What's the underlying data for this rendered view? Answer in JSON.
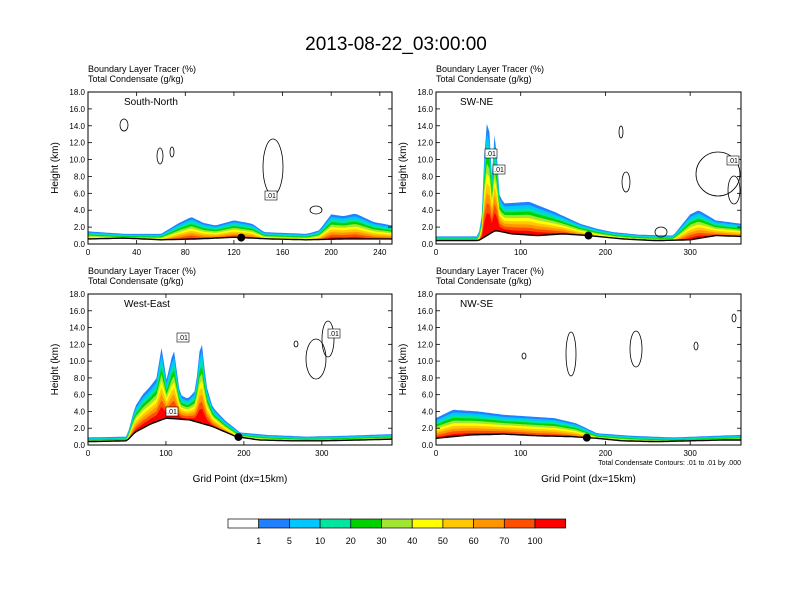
{
  "title": "2013-08-22_03:00:00",
  "chart_data": [
    {
      "type": "area",
      "label": "South-North",
      "header": [
        "Boundary Layer Tracer   (%)",
        "Total Condensate   (g/kg)"
      ],
      "ylabel": "Height (km)",
      "xlabel": "",
      "ylim": [
        0,
        18
      ],
      "yticks": [
        "0.0",
        "2.0",
        "4.0",
        "6.0",
        "8.0",
        "10.0",
        "12.0",
        "14.0",
        "16.0",
        "18.0"
      ],
      "xlim": [
        0,
        250
      ],
      "xticks": [
        0,
        40,
        80,
        120,
        160,
        200,
        240
      ],
      "contour_labels": [
        ".01"
      ],
      "marker_x": 126,
      "terrain": [
        [
          0,
          0.6
        ],
        [
          30,
          0.7
        ],
        [
          60,
          0.5
        ],
        [
          90,
          0.6
        ],
        [
          120,
          0.8
        ],
        [
          150,
          0.6
        ],
        [
          180,
          0.5
        ],
        [
          210,
          0.6
        ],
        [
          250,
          0.6
        ]
      ],
      "tracer_top": [
        [
          0,
          1.5
        ],
        [
          30,
          1.2
        ],
        [
          60,
          1.2
        ],
        [
          75,
          2.5
        ],
        [
          85,
          3.2
        ],
        [
          95,
          2.5
        ],
        [
          105,
          2.2
        ],
        [
          120,
          2.8
        ],
        [
          135,
          2.4
        ],
        [
          145,
          1.4
        ],
        [
          180,
          1.2
        ],
        [
          190,
          1.6
        ],
        [
          200,
          3.5
        ],
        [
          210,
          3.3
        ],
        [
          220,
          3.6
        ],
        [
          235,
          2.6
        ],
        [
          250,
          2.2
        ]
      ]
    },
    {
      "type": "area",
      "label": "SW-NE",
      "header": [
        "Boundary Layer Tracer   (%)",
        "Total Condensate   (g/kg)"
      ],
      "ylabel": "Height (km)",
      "xlabel": "",
      "ylim": [
        0,
        18
      ],
      "yticks": [
        "0.0",
        "2.0",
        "4.0",
        "6.0",
        "8.0",
        "10.0",
        "12.0",
        "14.0",
        "16.0",
        "18.0"
      ],
      "xlim": [
        0,
        360
      ],
      "xticks": [
        0,
        100,
        200,
        300
      ],
      "contour_labels": [
        ".01",
        ".01",
        ".01"
      ],
      "marker_x": 180,
      "terrain": [
        [
          0,
          0.4
        ],
        [
          50,
          0.4
        ],
        [
          60,
          1.0
        ],
        [
          70,
          1.6
        ],
        [
          90,
          1.2
        ],
        [
          120,
          1.0
        ],
        [
          150,
          1.2
        ],
        [
          180,
          1.0
        ],
        [
          220,
          0.6
        ],
        [
          260,
          0.4
        ],
        [
          300,
          0.5
        ],
        [
          330,
          1.0
        ],
        [
          360,
          0.9
        ]
      ],
      "tracer_top": [
        [
          0,
          0.9
        ],
        [
          50,
          0.9
        ],
        [
          55,
          4.0
        ],
        [
          58,
          13.5
        ],
        [
          62,
          15.0
        ],
        [
          66,
          8.0
        ],
        [
          70,
          14.5
        ],
        [
          74,
          6.0
        ],
        [
          80,
          4.8
        ],
        [
          110,
          5.0
        ],
        [
          140,
          3.8
        ],
        [
          170,
          2.4
        ],
        [
          190,
          1.8
        ],
        [
          210,
          1.4
        ],
        [
          240,
          1.1
        ],
        [
          280,
          1.0
        ],
        [
          300,
          3.5
        ],
        [
          310,
          4.0
        ],
        [
          330,
          2.8
        ],
        [
          360,
          2.4
        ]
      ]
    },
    {
      "type": "area",
      "label": "West-East",
      "header": [
        "Boundary Layer Tracer   (%)",
        "Total Condensate   (g/kg)"
      ],
      "ylabel": "Height (km)",
      "xlabel": "Grid Point (dx=15km)",
      "ylim": [
        0,
        18
      ],
      "yticks": [
        "0.0",
        "2.0",
        "4.0",
        "6.0",
        "8.0",
        "10.0",
        "12.0",
        "14.0",
        "16.0",
        "18.0"
      ],
      "xlim": [
        0,
        390
      ],
      "xticks": [
        0,
        100,
        200,
        300
      ],
      "contour_labels": [
        ".01",
        ".01",
        ".01"
      ],
      "marker_x": 193,
      "terrain": [
        [
          0,
          0.4
        ],
        [
          50,
          0.5
        ],
        [
          60,
          1.5
        ],
        [
          80,
          2.5
        ],
        [
          100,
          3.2
        ],
        [
          130,
          3.0
        ],
        [
          160,
          2.2
        ],
        [
          190,
          1.0
        ],
        [
          220,
          0.6
        ],
        [
          260,
          0.5
        ],
        [
          300,
          0.5
        ],
        [
          350,
          0.6
        ],
        [
          390,
          0.7
        ]
      ],
      "tracer_top": [
        [
          0,
          0.9
        ],
        [
          50,
          1.0
        ],
        [
          60,
          4.5
        ],
        [
          70,
          6.0
        ],
        [
          80,
          7.0
        ],
        [
          88,
          8.0
        ],
        [
          95,
          12.0
        ],
        [
          100,
          7.5
        ],
        [
          110,
          11.5
        ],
        [
          118,
          6.0
        ],
        [
          128,
          5.5
        ],
        [
          138,
          6.5
        ],
        [
          145,
          13.0
        ],
        [
          152,
          7.0
        ],
        [
          160,
          4.5
        ],
        [
          175,
          3.0
        ],
        [
          195,
          1.5
        ],
        [
          230,
          1.2
        ],
        [
          280,
          1.0
        ],
        [
          330,
          1.1
        ],
        [
          390,
          1.3
        ]
      ]
    },
    {
      "type": "area",
      "label": "NW-SE",
      "header": [
        "Boundary Layer Tracer   (%)",
        "Total Condensate   (g/kg)"
      ],
      "ylabel": "Height (km)",
      "xlabel": "Grid Point (dx=15km)",
      "ylim": [
        0,
        18
      ],
      "yticks": [
        "0.0",
        "2.0",
        "4.0",
        "6.0",
        "8.0",
        "10.0",
        "12.0",
        "14.0",
        "16.0",
        "18.0"
      ],
      "xlim": [
        0,
        360
      ],
      "xticks": [
        0,
        100,
        200,
        300
      ],
      "contour_labels": [],
      "marker_x": 178,
      "footnote": "Total Condensate Contours: .01 to .01 by .000",
      "terrain": [
        [
          0,
          0.8
        ],
        [
          40,
          1.2
        ],
        [
          80,
          1.3
        ],
        [
          120,
          1.1
        ],
        [
          160,
          1.0
        ],
        [
          190,
          0.8
        ],
        [
          220,
          0.5
        ],
        [
          260,
          0.4
        ],
        [
          300,
          0.5
        ],
        [
          340,
          0.6
        ],
        [
          360,
          0.6
        ]
      ],
      "tracer_top": [
        [
          0,
          3.2
        ],
        [
          20,
          4.2
        ],
        [
          50,
          4.0
        ],
        [
          80,
          3.6
        ],
        [
          110,
          3.4
        ],
        [
          140,
          3.2
        ],
        [
          165,
          2.6
        ],
        [
          190,
          1.4
        ],
        [
          230,
          1.1
        ],
        [
          280,
          0.9
        ],
        [
          330,
          1.1
        ],
        [
          360,
          1.2
        ]
      ]
    }
  ],
  "colorbar": {
    "labels": [
      "1",
      "5",
      "10",
      "20",
      "30",
      "40",
      "50",
      "60",
      "70",
      "100"
    ],
    "colors": [
      "#ffffff",
      "#2080ff",
      "#00c8ff",
      "#00e6a0",
      "#00d200",
      "#a0e632",
      "#ffff00",
      "#ffc800",
      "#ff9600",
      "#ff5000",
      "#ff0000"
    ]
  }
}
